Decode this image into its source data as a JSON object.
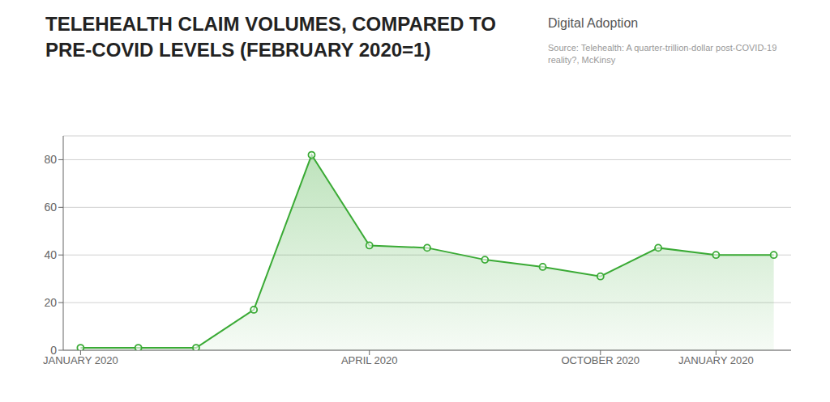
{
  "chart_data": {
    "type": "area",
    "title": "TELEHEALTH CLAIM VOLUMES, COMPARED TO PRE-COVID LEVELS (FEBRUARY 2020=1)",
    "annotations": [
      "Source: Telehealth: A quarter-trillion-dollar post-COVID-19 reality?, McKinsy",
      "Digital Adoption"
    ],
    "x": [
      0,
      1,
      2,
      3,
      4,
      5,
      6,
      7,
      8,
      9,
      10,
      11,
      12
    ],
    "values": [
      1,
      1,
      1,
      17,
      82,
      44,
      43,
      38,
      35,
      31,
      43,
      40,
      40
    ],
    "color": "#3aaa35",
    "marker": "circle",
    "xlim": [
      -0.3,
      12.3
    ],
    "xticks": [
      {
        "value": 0,
        "label": "JANUARY 2020"
      },
      {
        "value": 5,
        "label": "APRIL 2020"
      },
      {
        "value": 9,
        "label": "OCTOBER 2020"
      },
      {
        "value": 11,
        "label": "JANUARY 2020"
      }
    ],
    "ylim": [
      0,
      90
    ],
    "yticks": [
      0,
      20,
      40,
      60,
      80
    ],
    "grid": true
  }
}
